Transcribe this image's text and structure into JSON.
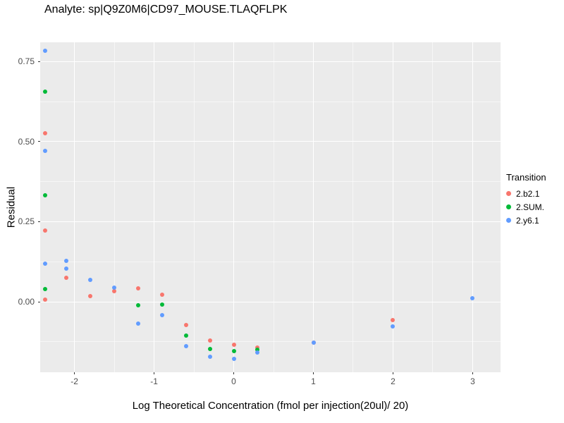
{
  "title": "Analyte: sp|Q9Z0M6|CD97_MOUSE.TLAQFLPK",
  "axes": {
    "xlabel": "Log Theoretical Concentration (fmol per injection(20ul)/ 20)",
    "ylabel": "Residual"
  },
  "legend": {
    "title": "Transition"
  },
  "chart_data": {
    "type": "scatter",
    "title": "Analyte: sp|Q9Z0M6|CD97_MOUSE.TLAQFLPK",
    "xlabel": "Log Theoretical Concentration (fmol per injection(20ul)/ 20)",
    "ylabel": "Residual",
    "xlim": [
      -2.43,
      3.35
    ],
    "ylim": [
      -0.22,
      0.81
    ],
    "grid": true,
    "panel_background": "#EBEBEB",
    "legend_title": "Transition",
    "legend_position": "right",
    "x_ticks": [
      -2,
      -1,
      0,
      1,
      2,
      3
    ],
    "y_ticks": [
      {
        "value": 0.0,
        "label": "0.00"
      },
      {
        "value": 0.25,
        "label": "0.25"
      },
      {
        "value": 0.5,
        "label": "0.50"
      },
      {
        "value": 0.75,
        "label": "0.75"
      }
    ],
    "x_minor_ticks": [
      -1.5,
      -0.5,
      0.5,
      1.5,
      2.5
    ],
    "y_minor_ticks": [
      -0.125,
      0.125,
      0.375,
      0.625
    ],
    "series": [
      {
        "name": "2.b2.1",
        "color": "#F8766D",
        "points": [
          [
            -2.37,
            0.525
          ],
          [
            -2.37,
            0.223
          ],
          [
            -2.37,
            0.007
          ],
          [
            -2.1,
            0.075
          ],
          [
            -1.8,
            0.018
          ],
          [
            -1.5,
            0.033
          ],
          [
            -1.2,
            0.043
          ],
          [
            -0.9,
            0.022
          ],
          [
            -0.6,
            -0.072
          ],
          [
            -0.3,
            -0.12
          ],
          [
            0.0,
            -0.135
          ],
          [
            0.3,
            -0.142
          ],
          [
            1.0,
            -0.128
          ],
          [
            2.0,
            -0.058
          ]
        ]
      },
      {
        "name": "2.SUM.",
        "color": "#00BA38",
        "points": [
          [
            -2.37,
            0.657
          ],
          [
            -2.37,
            0.333
          ],
          [
            -2.37,
            0.04
          ],
          [
            -1.2,
            -0.01
          ],
          [
            -0.9,
            -0.008
          ],
          [
            -0.6,
            -0.105
          ],
          [
            -0.3,
            -0.148
          ],
          [
            0.0,
            -0.155
          ],
          [
            0.3,
            -0.15
          ]
        ]
      },
      {
        "name": "2.y6.1",
        "color": "#619CFF",
        "points": [
          [
            -2.37,
            0.783
          ],
          [
            -2.37,
            0.472
          ],
          [
            -2.37,
            0.119
          ],
          [
            -2.1,
            0.128
          ],
          [
            -2.1,
            0.104
          ],
          [
            -1.8,
            0.068
          ],
          [
            -1.5,
            0.045
          ],
          [
            -1.2,
            -0.068
          ],
          [
            -0.9,
            -0.042
          ],
          [
            -0.6,
            -0.138
          ],
          [
            -0.3,
            -0.172
          ],
          [
            0.0,
            -0.178
          ],
          [
            0.3,
            -0.158
          ],
          [
            1.0,
            -0.127
          ],
          [
            2.0,
            -0.078
          ],
          [
            3.0,
            0.01
          ]
        ]
      }
    ]
  }
}
